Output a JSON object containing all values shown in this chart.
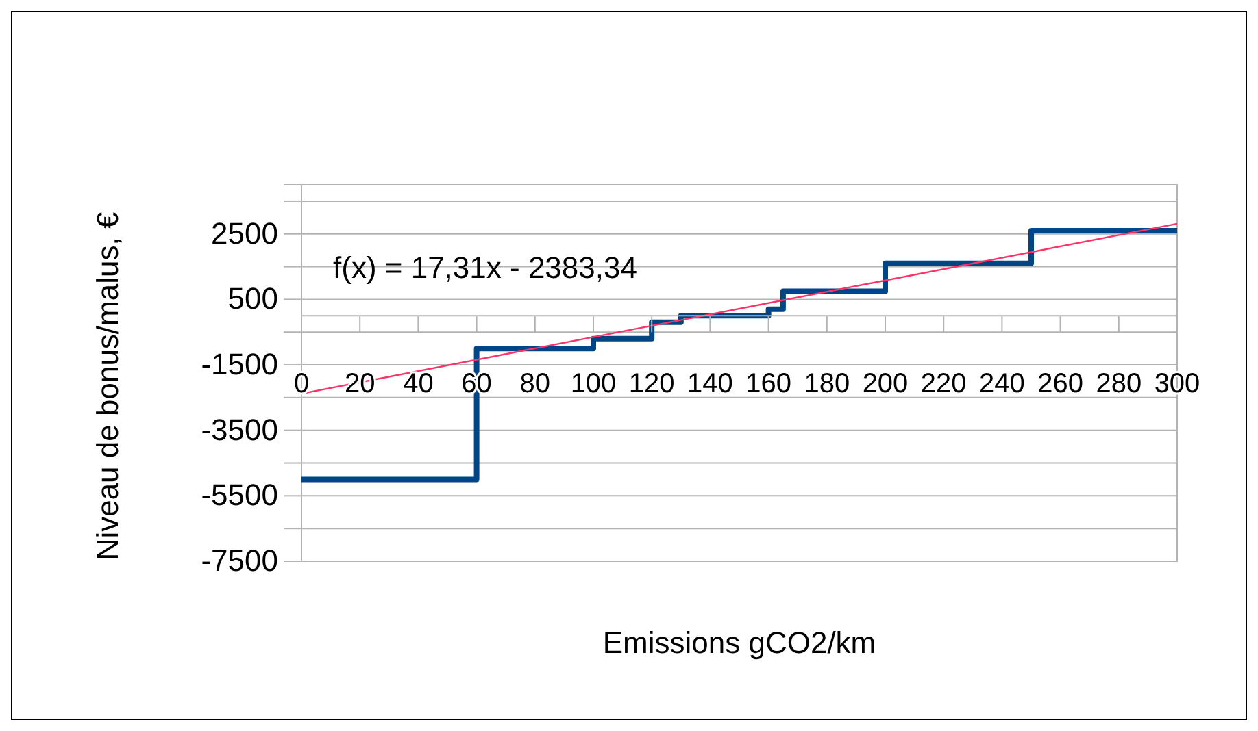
{
  "chart_data": {
    "type": "step",
    "xlabel": "Emissions gCO2/km",
    "ylabel": "Niveau de bonus/malus, €",
    "annotations": [
      "f(x) = 17,31x - 2383,34"
    ],
    "series": [
      {
        "color": "#004586",
        "x": [
          0,
          60,
          100,
          120,
          130,
          160,
          165,
          200,
          250,
          300
        ],
        "values": [
          -5000,
          -1000,
          -700,
          -200,
          0,
          200,
          750,
          1600,
          2600,
          2600
        ]
      },
      {
        "type": "line",
        "color": "#ff3366",
        "x": [
          0,
          300
        ],
        "values": [
          -2380,
          2810
        ]
      }
    ],
    "xlim": [
      0,
      300
    ],
    "xticks": [
      0,
      20,
      40,
      60,
      80,
      100,
      120,
      140,
      160,
      180,
      200,
      220,
      240,
      260,
      280,
      300
    ],
    "ylim": [
      -7500,
      4000
    ],
    "yticks": [
      -7500,
      {
        "value": -6500,
        "label": null
      },
      -5500,
      {
        "value": -4500,
        "label": null
      },
      -3500,
      {
        "value": -2500,
        "label": null
      },
      -1500,
      {
        "value": -500,
        "label": null
      },
      500,
      {
        "value": 1500,
        "label": null
      },
      2500,
      {
        "value": 3500,
        "label": null
      }
    ],
    "grid": "y"
  }
}
